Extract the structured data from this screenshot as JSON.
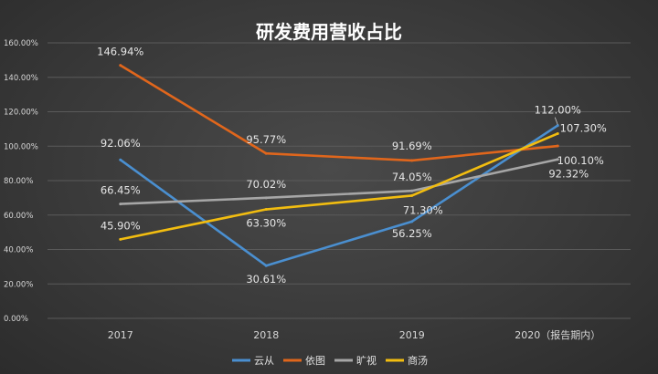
{
  "chart_data": {
    "type": "line",
    "title": "研发费用营收占比",
    "categories": [
      "2017",
      "2018",
      "2019",
      "2020（报告期内）"
    ],
    "ylim": [
      0,
      160
    ],
    "yticks": [
      "0.00%",
      "20.00%",
      "40.00%",
      "60.00%",
      "80.00%",
      "100.00%",
      "120.00%",
      "140.00%",
      "160.00%"
    ],
    "grid": true,
    "legend_position": "bottom",
    "series": [
      {
        "name": "云从",
        "color": "#4a8fd0",
        "values": [
          92.06,
          30.61,
          56.25,
          112.0
        ],
        "labels": [
          "92.06%",
          "30.61%",
          "56.25%",
          "112.00%"
        ]
      },
      {
        "name": "依图",
        "color": "#e0661c",
        "values": [
          146.94,
          95.77,
          91.69,
          100.1
        ],
        "labels": [
          "146.94%",
          "95.77%",
          "91.69%",
          "100.10%"
        ]
      },
      {
        "name": "旷视",
        "color": "#a6a6a6",
        "values": [
          66.45,
          70.02,
          74.05,
          92.32
        ],
        "labels": [
          "66.45%",
          "70.02%",
          "74.05%",
          "92.32%"
        ]
      },
      {
        "name": "商汤",
        "color": "#f2bd10",
        "values": [
          45.9,
          63.3,
          71.3,
          107.3
        ],
        "labels": [
          "45.90%",
          "63.30%",
          "71.30%",
          "107.30%"
        ]
      }
    ]
  }
}
